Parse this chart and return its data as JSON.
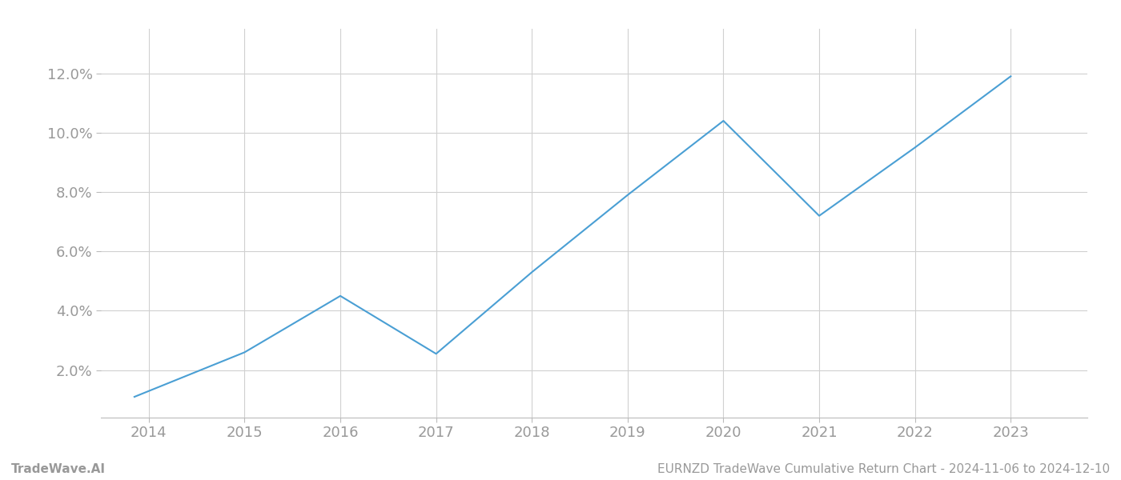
{
  "x": [
    2013.85,
    2015.0,
    2016.0,
    2017.0,
    2018.0,
    2019.0,
    2020.0,
    2021.0,
    2022.0,
    2023.0
  ],
  "y": [
    1.1,
    2.6,
    4.5,
    2.55,
    5.3,
    7.9,
    10.4,
    7.2,
    9.5,
    11.9
  ],
  "line_color": "#4a9fd4",
  "line_width": 1.5,
  "background_color": "#ffffff",
  "grid_color": "#d0d0d0",
  "tick_color_hex": "#999999",
  "spine_color": "#bbbbbb",
  "yticks": [
    2.0,
    4.0,
    6.0,
    8.0,
    10.0,
    12.0
  ],
  "xticks": [
    2014,
    2015,
    2016,
    2017,
    2018,
    2019,
    2020,
    2021,
    2022,
    2023
  ],
  "xlim": [
    2013.5,
    2023.8
  ],
  "ylim": [
    0.4,
    13.5
  ],
  "footer_left": "TradeWave.AI",
  "footer_right": "EURNZD TradeWave Cumulative Return Chart - 2024-11-06 to 2024-12-10",
  "footer_fontsize": 11,
  "tick_fontsize": 13
}
